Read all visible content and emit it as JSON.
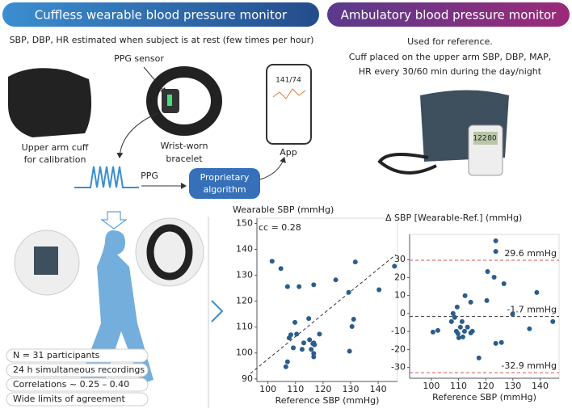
{
  "header": {
    "left_title": "Cuffless wearable blood pressure monitor",
    "right_title": "Ambulatory blood pressure monitor"
  },
  "wearable": {
    "description": "SBP, DBP, HR estimated when subject is at rest (few times per hour)",
    "ppg_sensor_label": "PPG sensor",
    "cuff_label": [
      "Upper arm cuff",
      "for calibration"
    ],
    "bracelet_label": [
      "Wrist-worn",
      "bracelet"
    ],
    "app_label": "App",
    "app_screen_value": "141/74",
    "ppg_label": "PPG",
    "algorithm_label": [
      "Proprietary",
      "algorithm"
    ]
  },
  "ambulatory": {
    "description": [
      "Used for reference.",
      "Cuff placed on the upper arm SBP, DBP, MAP,",
      "HR every 30/60 min during the day/night"
    ],
    "device_display": [
      "122",
      "80"
    ]
  },
  "summary": [
    "N = 31 participants",
    "24 h simultaneous recordings",
    "Correlations ~ 0.25 – 0.40",
    "Wide limits of agreement"
  ],
  "chart_data": [
    {
      "type": "scatter",
      "title": "Wearable SBP (mmHg)",
      "x_label": "Reference SBP (mmHg)",
      "annotation": "cc = 0.28",
      "color": "#2a5d8c",
      "x": [
        101.5,
        104.7,
        107.1,
        111.3,
        116.6,
        106.5,
        107.1,
        107.7,
        108.3,
        109.2,
        109.8,
        112.4,
        113,
        115.1,
        115.7,
        116.3,
        116.6,
        116.6,
        116.9,
        118.7,
        114.8,
        116.6,
        124.6,
        129.3,
        129.6,
        130.5,
        131.1,
        131.7,
        140.3,
        145.9,
        110.4
      ],
      "values": [
        135.4,
        132.6,
        125.6,
        125.6,
        126.3,
        94.7,
        96.6,
        105.8,
        107,
        102,
        111.8,
        101.4,
        103.9,
        105.1,
        101.4,
        103.6,
        99.8,
        98.5,
        103.2,
        107.3,
        113.3,
        103.9,
        128.2,
        123.4,
        100.7,
        110.2,
        113,
        135.1,
        124.4,
        133.5,
        107.3
      ],
      "xlim": [
        96,
        147
      ],
      "ylim": [
        89,
        152
      ],
      "xticks": [
        100,
        110,
        120,
        130,
        140
      ],
      "yticks": [
        90,
        100,
        110,
        120,
        130,
        140,
        150
      ]
    },
    {
      "type": "scatter",
      "title": "Δ SBP [Wearable-Ref.] (mmHg)",
      "x_label": "Reference SBP (mmHg)",
      "color": "#2a5d8c",
      "x": [
        100.6,
        102.4,
        107.4,
        108.6,
        109.5,
        109.2,
        110.1,
        109.8,
        110.7,
        111.3,
        111.6,
        112.2,
        112.4,
        113.3,
        114.5,
        115.1,
        114.5,
        117.5,
        120.4,
        120.7,
        123.1,
        123.7,
        123.7,
        123.7,
        125.8,
        126.7,
        129.9,
        136.1,
        138.8,
        144.7,
        108
      ],
      "values": [
        -10.3,
        -9.4,
        -4.5,
        -2.2,
        3.6,
        -9.9,
        -13.5,
        -11.2,
        -7.6,
        -4.5,
        -13,
        -9.9,
        9.9,
        -7.6,
        -10.8,
        -9.9,
        6.3,
        -24.7,
        7.2,
        23.3,
        20.2,
        40.4,
        34.5,
        -16.6,
        -16.1,
        16.6,
        -0.4,
        -8.5,
        11.7,
        -4.5,
        0
      ],
      "reference_lines": [
        {
          "value": 29.6,
          "label": "29.6 mmHg",
          "color": "#d9534f"
        },
        {
          "value": -1.7,
          "label": "-1.7 mmHg",
          "color": "#333333"
        },
        {
          "value": -32.9,
          "label": "-32.9 mmHg",
          "color": "#d9534f"
        }
      ],
      "xlim": [
        92,
        147
      ],
      "ylim": [
        -36,
        44
      ],
      "xticks": [
        100,
        110,
        120,
        130,
        140
      ],
      "yticks": [
        -30,
        -20,
        -10,
        0,
        10,
        20,
        30
      ]
    }
  ]
}
